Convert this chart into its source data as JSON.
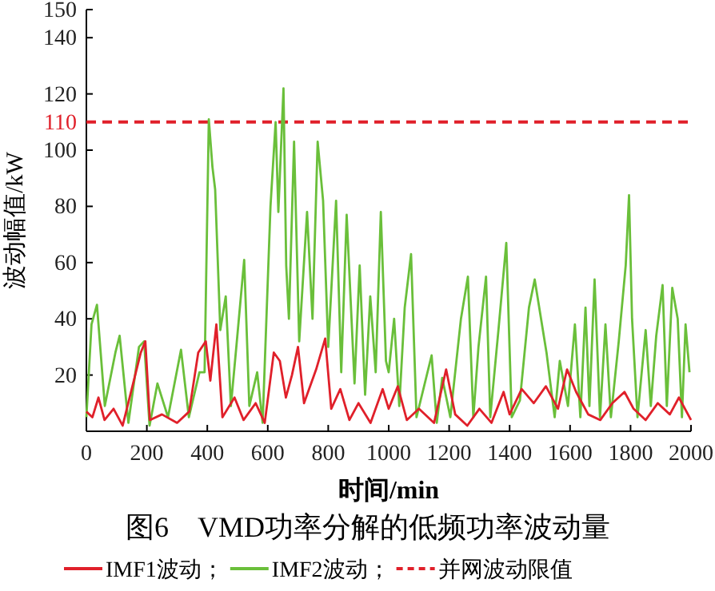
{
  "chart_data": {
    "type": "line",
    "title": "图6　VMD功率分解的低频功率波动量",
    "xlabel": "时间/min",
    "ylabel": "波动幅值/kW",
    "xlim": [
      0,
      2000
    ],
    "xticks": [
      0,
      200,
      400,
      600,
      800,
      1000,
      1200,
      1400,
      1600,
      1800,
      2000
    ],
    "ylim": [
      0,
      150
    ],
    "yticks": [
      20,
      40,
      60,
      80,
      100,
      110,
      120,
      140,
      150
    ],
    "legend": "bottom",
    "grid": false,
    "series": [
      {
        "name": "IMF1波动；",
        "color": "#e0202a",
        "x": [
          0,
          20,
          40,
          60,
          90,
          120,
          150,
          180,
          195,
          210,
          250,
          300,
          340,
          370,
          395,
          410,
          430,
          450,
          490,
          520,
          560,
          590,
          620,
          640,
          660,
          680,
          700,
          720,
          760,
          790,
          810,
          840,
          870,
          900,
          940,
          980,
          1000,
          1030,
          1060,
          1100,
          1150,
          1190,
          1220,
          1260,
          1300,
          1340,
          1380,
          1400,
          1440,
          1480,
          1520,
          1560,
          1590,
          1620,
          1660,
          1700,
          1740,
          1780,
          1810,
          1850,
          1890,
          1930,
          1960,
          2000
        ],
        "values": [
          7,
          5,
          12,
          4,
          8,
          2,
          15,
          28,
          32,
          4,
          6,
          3,
          7,
          28,
          32,
          18,
          38,
          5,
          12,
          4,
          10,
          3,
          28,
          25,
          12,
          20,
          30,
          10,
          22,
          33,
          8,
          15,
          4,
          10,
          3,
          15,
          8,
          16,
          4,
          8,
          3,
          22,
          6,
          2,
          8,
          3,
          14,
          6,
          15,
          10,
          16,
          8,
          22,
          14,
          6,
          4,
          10,
          14,
          8,
          4,
          10,
          6,
          12,
          4
        ]
      },
      {
        "name": "IMF2波动；",
        "color": "#6abf3a",
        "x": [
          0,
          17,
          35,
          61,
          96,
          110,
          139,
          174,
          191,
          209,
          235,
          270,
          313,
          339,
          374,
          391,
          405,
          417,
          426,
          443,
          461,
          478,
          496,
          522,
          539,
          565,
          583,
          609,
          626,
          635,
          652,
          661,
          670,
          687,
          704,
          730,
          748,
          765,
          783,
          800,
          826,
          843,
          861,
          887,
          904,
          922,
          939,
          957,
          974,
          991,
          1000,
          1018,
          1035,
          1053,
          1074,
          1092,
          1142,
          1159,
          1177,
          1204,
          1239,
          1262,
          1280,
          1297,
          1322,
          1336,
          1363,
          1389,
          1407,
          1434,
          1464,
          1483,
          1504,
          1522,
          1549,
          1566,
          1593,
          1616,
          1634,
          1651,
          1664,
          1681,
          1699,
          1717,
          1735,
          1761,
          1784,
          1795,
          1805,
          1823,
          1850,
          1867,
          1885,
          1906,
          1920,
          1938,
          1956,
          1970,
          1982,
          1995
        ],
        "values": [
          5,
          38,
          45,
          9,
          28,
          34,
          3,
          30,
          32,
          2,
          17,
          5,
          29,
          5,
          21,
          21,
          111,
          94,
          86,
          36,
          48,
          9,
          30,
          61,
          9,
          21,
          3,
          80,
          110,
          78,
          122,
          59,
          40,
          103,
          32,
          78,
          40,
          103,
          82,
          30,
          82,
          21,
          77,
          17,
          59,
          13,
          48,
          21,
          78,
          25,
          21,
          40,
          9,
          44,
          63,
          5,
          27,
          3,
          19,
          5,
          40,
          55,
          5,
          30,
          55,
          5,
          36,
          67,
          5,
          11,
          44,
          54,
          40,
          28,
          5,
          25,
          9,
          38,
          5,
          44,
          9,
          54,
          5,
          38,
          5,
          32,
          59,
          84,
          40,
          5,
          36,
          9,
          34,
          52,
          9,
          51,
          40,
          5,
          38,
          21
        ]
      },
      {
        "name": "并网波动限值",
        "color": "#e0202a",
        "line_style": "dashed",
        "x": [
          0,
          2000
        ],
        "values": [
          110,
          110
        ]
      }
    ]
  }
}
